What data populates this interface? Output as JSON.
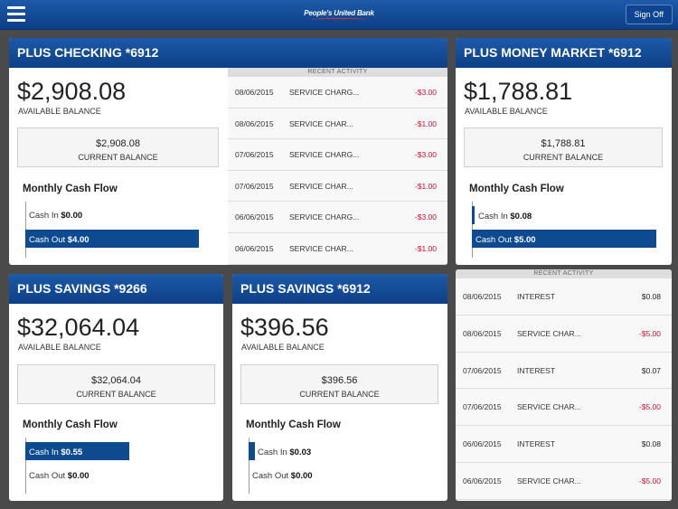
{
  "header": {
    "logo_text": "People's United Bank",
    "signoff_label": "Sign Off"
  },
  "accounts": {
    "checking": {
      "title": "PLUS CHECKING *6912",
      "available": "$2,908.08",
      "available_label": "AVAILABLE BALANCE",
      "current": "$2,908.08",
      "current_label": "CURRENT BALANCE",
      "cashflow_title": "Monthly Cash Flow",
      "cash_in_label": "Cash In",
      "cash_in": "$0.00",
      "cash_out_label": "Cash Out",
      "cash_out": "$4.00",
      "cash_in_level": 0,
      "cash_out_level": 1.0,
      "activity_title": "RECENT ACTIVITY",
      "activity": [
        {
          "date": "08/06/2015",
          "desc": "SERVICE CHARG...",
          "amount": "-$3.00"
        },
        {
          "date": "08/06/2015",
          "desc": "SERVICE CHAR...",
          "amount": "-$1.00"
        },
        {
          "date": "07/06/2015",
          "desc": "SERVICE CHARG...",
          "amount": "-$3.00"
        },
        {
          "date": "07/06/2015",
          "desc": "SERVICE CHAR...",
          "amount": "-$1.00"
        },
        {
          "date": "06/06/2015",
          "desc": "SERVICE CHARG...",
          "amount": "-$3.00"
        },
        {
          "date": "06/06/2015",
          "desc": "SERVICE CHAR...",
          "amount": "-$1.00"
        }
      ]
    },
    "money_market": {
      "title": "PLUS MONEY MARKET *6912",
      "available": "$1,788.81",
      "available_label": "AVAILABLE BALANCE",
      "current": "$1,788.81",
      "current_label": "CURRENT BALANCE",
      "cashflow_title": "Monthly Cash Flow",
      "cash_in_label": "Cash In",
      "cash_in": "$0.08",
      "cash_out_label": "Cash Out",
      "cash_out": "$5.00",
      "cash_in_level": 0.016,
      "cash_out_level": 1.0,
      "activity_title": "RECENT ACTIVITY",
      "activity": [
        {
          "date": "08/06/2015",
          "desc": "INTEREST",
          "amount": "$0.08"
        },
        {
          "date": "08/06/2015",
          "desc": "SERVICE CHAR...",
          "amount": "-$5.00"
        },
        {
          "date": "07/06/2015",
          "desc": "INTEREST",
          "amount": "$0.07"
        },
        {
          "date": "07/06/2015",
          "desc": "SERVICE CHAR...",
          "amount": "-$5.00"
        },
        {
          "date": "06/06/2015",
          "desc": "INTEREST",
          "amount": "$0.08"
        },
        {
          "date": "06/06/2015",
          "desc": "SERVICE CHAR...",
          "amount": "-$5.00"
        }
      ]
    },
    "savings_9266": {
      "title": "PLUS SAVINGS *9266",
      "available": "$32,064.04",
      "available_label": "AVAILABLE BALANCE",
      "current": "$32,064.04",
      "current_label": "CURRENT BALANCE",
      "cashflow_title": "Monthly Cash Flow",
      "cash_in_label": "Cash In",
      "cash_in": "$0.55",
      "cash_out_label": "Cash Out",
      "cash_out": "$0.00",
      "cash_in_level": 1.0,
      "cash_out_level": 0
    },
    "savings_6912": {
      "title": "PLUS SAVINGS *6912",
      "available": "$396.56",
      "available_label": "AVAILABLE BALANCE",
      "current": "$396.56",
      "current_label": "CURRENT BALANCE",
      "cashflow_title": "Monthly Cash Flow",
      "cash_in_label": "Cash In",
      "cash_in": "$0.03",
      "cash_out_label": "Cash Out",
      "cash_out": "$0.00",
      "cash_in_level": 0.04,
      "cash_out_level": 0
    }
  },
  "colors": {
    "brand_blue": "#0d4a8f",
    "negative": "#c8102e"
  }
}
